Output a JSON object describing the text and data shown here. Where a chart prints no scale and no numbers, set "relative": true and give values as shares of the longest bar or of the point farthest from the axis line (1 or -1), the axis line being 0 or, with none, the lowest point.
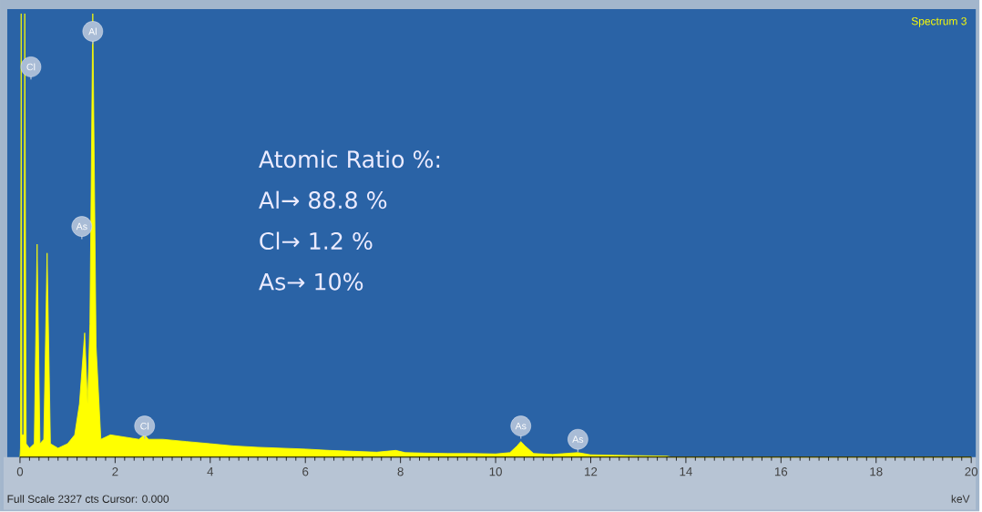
{
  "chart_data": {
    "type": "area",
    "title": "Spectrum 3",
    "xlabel": "keV",
    "relative": true,
    "color": "#ffff00",
    "xlim": [
      0,
      20
    ],
    "xticks": [
      0,
      2,
      4,
      6,
      8,
      10,
      12,
      14,
      16,
      18,
      20
    ],
    "x": [
      0,
      0.01,
      0.025,
      0.04,
      0.08,
      0.1,
      0.13,
      0.2,
      0.3,
      0.36,
      0.42,
      0.5,
      0.57,
      0.64,
      0.8,
      1.0,
      1.15,
      1.25,
      1.36,
      1.42,
      1.47,
      1.53,
      1.6,
      1.7,
      1.9,
      2.2,
      2.5,
      2.62,
      2.7,
      3.0,
      3.5,
      4.0,
      4.5,
      5.0,
      5.5,
      6.0,
      6.5,
      7.0,
      7.5,
      7.9,
      8.1,
      8.5,
      9.0,
      9.5,
      10.0,
      10.3,
      10.45,
      10.53,
      10.62,
      10.8,
      11.2,
      11.73,
      12.0,
      12.5,
      13.0,
      13.6,
      13.7,
      20
    ],
    "values": [
      0,
      0.02,
      1.0,
      0.05,
      0.05,
      1.0,
      0.03,
      0.02,
      0.03,
      0.48,
      0.03,
      0.04,
      0.46,
      0.03,
      0.02,
      0.03,
      0.05,
      0.12,
      0.28,
      0.12,
      0.3,
      1.0,
      0.25,
      0.04,
      0.05,
      0.045,
      0.04,
      0.05,
      0.04,
      0.04,
      0.035,
      0.03,
      0.025,
      0.022,
      0.02,
      0.018,
      0.015,
      0.013,
      0.011,
      0.015,
      0.01,
      0.009,
      0.008,
      0.008,
      0.007,
      0.01,
      0.025,
      0.035,
      0.025,
      0.008,
      0.006,
      0.01,
      0.005,
      0.004,
      0.003,
      0.002,
      0,
      0
    ],
    "annotations": [
      "Atomic Ratio %:",
      "Al→ 88.8 %",
      "Cl→ 1.2 %",
      "As→ 10%",
      "Full Scale 2327 cts Cursor: 0.000",
      {
        "text": "Cl",
        "x": 0.23,
        "y": 0.88
      },
      {
        "text": "Al",
        "x": 1.53,
        "y": 0.96
      },
      {
        "text": "As",
        "x": 1.3,
        "y": 0.52
      },
      {
        "text": "Cl",
        "x": 2.62,
        "y": 0.07
      },
      {
        "text": "As",
        "x": 10.53,
        "y": 0.07
      },
      {
        "text": "As",
        "x": 11.73,
        "y": 0.04
      }
    ]
  }
}
